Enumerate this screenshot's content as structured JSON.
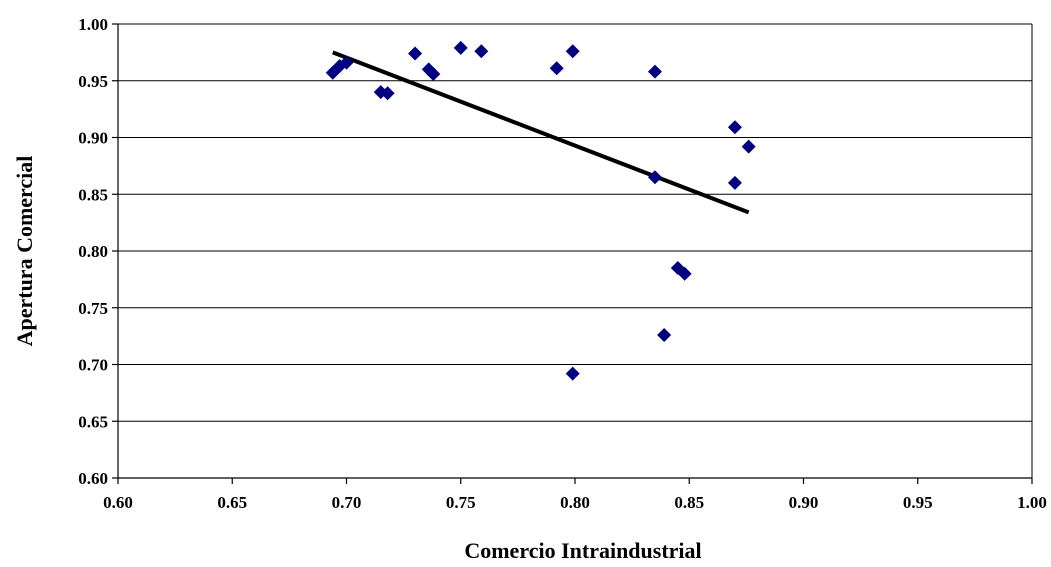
{
  "chart_data": {
    "type": "scatter",
    "xlabel": "Comercio Intraindustrial",
    "ylabel": "Apertura Comercial",
    "xlim": [
      0.6,
      1.0
    ],
    "ylim": [
      0.6,
      1.0
    ],
    "x_ticks": [
      "0.60",
      "0.65",
      "0.70",
      "0.75",
      "0.80",
      "0.85",
      "0.90",
      "0.95",
      "1.00"
    ],
    "y_ticks": [
      "0.60",
      "0.65",
      "0.70",
      "0.75",
      "0.80",
      "0.85",
      "0.90",
      "0.95",
      "1.00"
    ],
    "grid": "horizontal",
    "legend": "none",
    "colors": {
      "points": "#000080",
      "trendline": "#000000"
    },
    "points": [
      {
        "x": 0.694,
        "y": 0.957
      },
      {
        "x": 0.697,
        "y": 0.963
      },
      {
        "x": 0.7,
        "y": 0.966
      },
      {
        "x": 0.715,
        "y": 0.94
      },
      {
        "x": 0.718,
        "y": 0.939
      },
      {
        "x": 0.73,
        "y": 0.974
      },
      {
        "x": 0.736,
        "y": 0.96
      },
      {
        "x": 0.738,
        "y": 0.956
      },
      {
        "x": 0.75,
        "y": 0.979
      },
      {
        "x": 0.759,
        "y": 0.976
      },
      {
        "x": 0.792,
        "y": 0.961
      },
      {
        "x": 0.799,
        "y": 0.976
      },
      {
        "x": 0.799,
        "y": 0.692
      },
      {
        "x": 0.835,
        "y": 0.958
      },
      {
        "x": 0.835,
        "y": 0.865
      },
      {
        "x": 0.839,
        "y": 0.726
      },
      {
        "x": 0.845,
        "y": 0.785
      },
      {
        "x": 0.848,
        "y": 0.78
      },
      {
        "x": 0.87,
        "y": 0.909
      },
      {
        "x": 0.87,
        "y": 0.86
      },
      {
        "x": 0.876,
        "y": 0.892
      }
    ],
    "trendline": {
      "x": [
        0.694,
        0.876
      ],
      "y": [
        0.975,
        0.834
      ]
    }
  }
}
